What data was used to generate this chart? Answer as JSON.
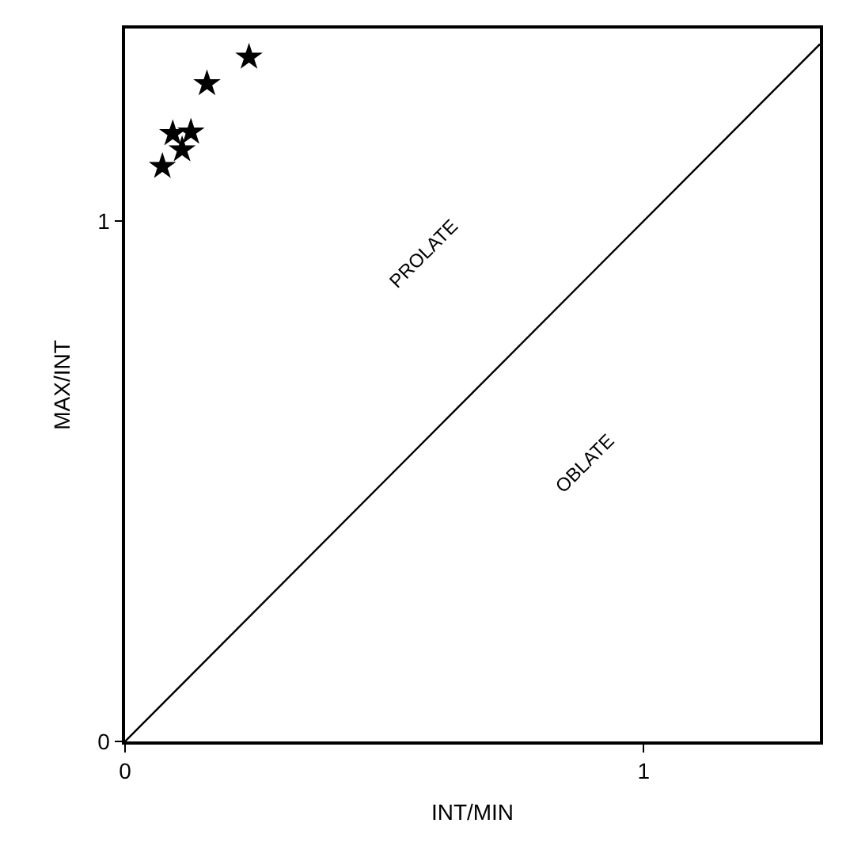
{
  "chart_data": {
    "type": "scatter",
    "xlabel": "INT/MIN",
    "ylabel": "MAX/INT",
    "series": [
      {
        "color": "#000000",
        "marker": "star",
        "x": [
          0.072,
          0.092,
          0.127,
          0.11,
          0.158,
          0.239
        ],
        "values": [
          1.105,
          1.168,
          1.171,
          1.137,
          1.264,
          1.315
        ]
      },
      {
        "type": "line",
        "color": "#000000",
        "marker": "none",
        "line_style": "solid",
        "x": [
          0,
          1.34
        ],
        "values": [
          0,
          1.34
        ]
      }
    ],
    "annotations": [
      "PROLATE",
      "OBLATE"
    ],
    "xlim": [
      0,
      1.34
    ],
    "ylim": [
      0,
      1.37
    ],
    "xticks": [
      0,
      1
    ],
    "yticks": [
      0,
      1
    ],
    "grid": false
  }
}
